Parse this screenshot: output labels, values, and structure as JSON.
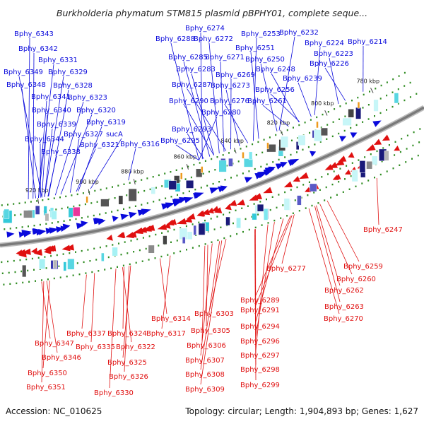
{
  "title": "Burkholderia phymatum STM815 plasmid pBPHY01, complete seque...",
  "footer": {
    "accession": "Accession: NC_010625",
    "summary": "Topology: circular; Length: 1,904,893 bp; Genes: 1,627"
  },
  "colors": {
    "forward_strand": "#0a0adc",
    "reverse_strand": "#e01010",
    "backbone": "#7a7a7a",
    "tick_dots": "#2e8b20",
    "frame_dots": "#2e8b20",
    "frame_orange": "#ee9a1c"
  },
  "scale_ticks": [
    "780 kbp",
    "800 kbp",
    "820 kbp",
    "840 kbp",
    "860 kbp",
    "880 kbp",
    "900 kbp",
    "920 kbp"
  ],
  "top_labels": [
    "Bphy_6343",
    "Bphy_6342",
    "Bphy_6331",
    "Bphy_6349",
    "Bphy_6329",
    "Bphy_6348",
    "Bphy_6328",
    "Bphy_6341",
    "Bphy_6323",
    "Bphy_6340",
    "Bphy_6320",
    "Bphy_6339",
    "Bphy_6319",
    "Bphy_6327",
    "sucA",
    "Bphy_6344",
    "Bphy_6321",
    "Bphy_6316",
    "Bphy_6338",
    "Bphy_6274",
    "Bphy_6288",
    "Bphy_6272",
    "Bphy_6253",
    "Bphy_6232",
    "Bphy_6224",
    "Bphy_6214",
    "Bphy_6251",
    "Bphy_6223",
    "Bphy_6285",
    "Bphy_6271",
    "Bphy_6250",
    "Bphy_6226",
    "Bphy_6283",
    "Bphy_6248",
    "Bphy_6269",
    "Bphy_6239",
    "Bphy_6287",
    "Bphy_6273",
    "Bphy_6256",
    "Bphy_6290",
    "Bphy_6276",
    "Bphy_6261",
    "Bphy_6280",
    "Bphy_6293",
    "Bphy_6295"
  ],
  "bottom_labels": [
    "Bphy_6247",
    "Bphy_6277",
    "Bphy_6259",
    "Bphy_6260",
    "Bphy_6262",
    "Bphy_6263",
    "Bphy_6270",
    "Bphy_6289",
    "Bphy_6291",
    "Bphy_6314",
    "Bphy_6303",
    "Bphy_6294",
    "Bphy_6337",
    "Bphy_6324",
    "Bphy_6317",
    "Bphy_6305",
    "Bphy_6347",
    "Bphy_6335",
    "Bphy_6322",
    "Bphy_6306",
    "Bphy_6296",
    "Bphy_6346",
    "Bphy_6307",
    "Bphy_6297",
    "Bphy_6325",
    "Bphy_6298",
    "Bphy_6350",
    "Bphy_6308",
    "Bphy_6326",
    "Bphy_6309",
    "Bphy_6299",
    "Bphy_6351",
    "Bphy_6330"
  ]
}
